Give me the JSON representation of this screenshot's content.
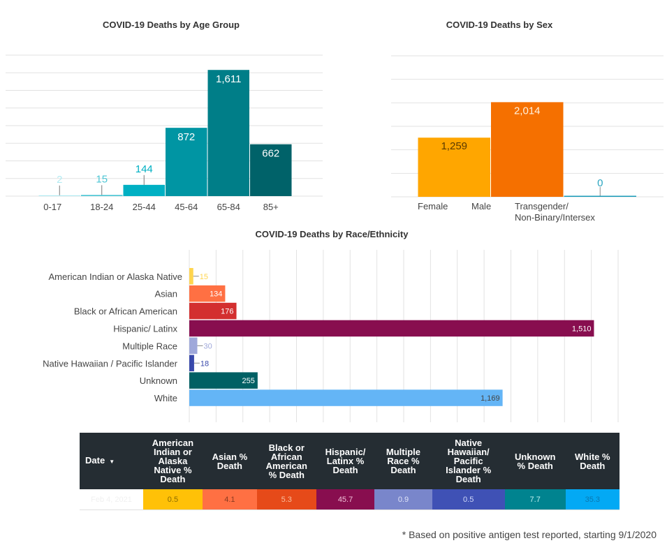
{
  "chart_data": [
    {
      "type": "bar",
      "title": "COVID-19 Deaths by Age Group",
      "xlabel": "",
      "ylabel": "",
      "categories": [
        "0-17",
        "18-24",
        "25-44",
        "45-64",
        "65-84",
        "85+"
      ],
      "values": [
        2,
        15,
        144,
        872,
        1611,
        662
      ],
      "labels": [
        "2",
        "15",
        "144",
        "872",
        "1,611",
        "662"
      ],
      "colors": [
        "#b3ebf2",
        "#4cc6d4",
        "#00b0c3",
        "#0095a3",
        "#007e88",
        "#006269"
      ],
      "ylim": [
        0,
        1800
      ],
      "ytick_step": 225,
      "grid": true
    },
    {
      "type": "bar",
      "title": "COVID-19 Deaths by Sex",
      "xlabel": "",
      "ylabel": "",
      "categories": [
        "Female",
        "Male",
        "Transgender/ Non-Binary/Intersex"
      ],
      "category_lines": [
        [
          "Female"
        ],
        [
          "Male"
        ],
        [
          "Transgender/",
          "Non-Binary/Intersex"
        ]
      ],
      "values": [
        1259,
        2014,
        0
      ],
      "labels": [
        "1,259",
        "2,014",
        "0"
      ],
      "colors": [
        "#ffa600",
        "#f57000",
        "#1a9bb8"
      ],
      "label_colors": [
        "#5a3a00",
        "#fff3e0",
        "#2aa5c0"
      ],
      "ylim": [
        0,
        3000
      ],
      "ytick_step": 500,
      "grid": true
    },
    {
      "type": "bar",
      "orientation": "horizontal",
      "title": "COVID-19 Deaths by Race/Ethnicity",
      "xlabel": "",
      "ylabel": "",
      "categories": [
        "American Indian or Alaska Native",
        "Asian",
        "Black or African American",
        "Hispanic/ Latinx",
        "Multiple Race",
        "Native Hawaiian / Pacific Islander",
        "Unknown",
        "White"
      ],
      "values": [
        15,
        134,
        176,
        1510,
        30,
        18,
        255,
        1169
      ],
      "labels": [
        "15",
        "134",
        "176",
        "1,510",
        "30",
        "18",
        "255",
        "1,169"
      ],
      "colors": [
        "#ffd54f",
        "#ff7043",
        "#d32f2f",
        "#880e4f",
        "#9fa8da",
        "#3949ab",
        "#006064",
        "#64b5f6"
      ],
      "label_colors": [
        "#ffd54f",
        "#ffffff",
        "#ffffff",
        "#ffffff",
        "#9fa8da",
        "#3949ab",
        "#ffffff",
        "#444444"
      ],
      "xlim": [
        0,
        1600
      ],
      "xtick_step": 100,
      "grid": true
    }
  ],
  "table": {
    "columns": [
      {
        "label": "Date",
        "sort_icon": "sort-down-icon"
      },
      {
        "label": "American Indian or Alaska Native % Death"
      },
      {
        "label": "Asian % Death"
      },
      {
        "label": "Black or African American % Death"
      },
      {
        "label": "Hispanic/ Latinx % Death"
      },
      {
        "label": "Multiple Race % Death"
      },
      {
        "label": "Native Hawaiian/ Pacific Islander % Death"
      },
      {
        "label": "Unknown % Death"
      },
      {
        "label": "White % Death"
      }
    ],
    "header_lines": [
      [
        "Date"
      ],
      [
        "American",
        "Indian or",
        "Alaska",
        "Native %",
        "Death"
      ],
      [
        "Asian %",
        "Death"
      ],
      [
        "Black or",
        "African",
        "American",
        "% Death"
      ],
      [
        "Hispanic/",
        "Latinx %",
        "Death"
      ],
      [
        "Multiple",
        "Race %",
        "Death"
      ],
      [
        "Native",
        "Hawaiian/",
        "Pacific",
        "Islander %",
        "Death"
      ],
      [
        "Unknown",
        "% Death"
      ],
      [
        "White %",
        "Death"
      ]
    ],
    "rows": [
      [
        "Feb 4, 2021",
        "0.5",
        "4.1",
        "5.3",
        "45.7",
        "0.9",
        "0.5",
        "7.7",
        "35.3"
      ]
    ],
    "cell_colors": [
      "#ffffff",
      "#ffc107",
      "#ff7043",
      "#e64a19",
      "#880e4f",
      "#7986cb",
      "#3f51b5",
      "#00838f",
      "#03a9f4"
    ],
    "cell_text_colors": [
      "#f0f0f0",
      "#8a6a00",
      "#8a3a20",
      "#f8c0a0",
      "#f0c0d8",
      "#e0e4f8",
      "#d0d8f8",
      "#c0f0f0",
      "#0b78b0"
    ],
    "header_bg": "#252d33"
  },
  "footnote": "* Based on positive antigen test reported, starting 9/1/2020"
}
